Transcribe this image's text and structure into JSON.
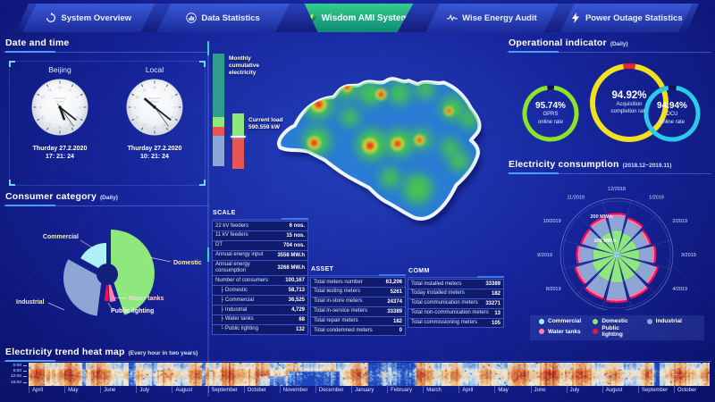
{
  "nav": {
    "tabs": [
      {
        "label": "System Overview",
        "icon": "refresh-icon",
        "active": false
      },
      {
        "label": "Data Statistics",
        "icon": "chart-icon",
        "active": false
      },
      {
        "label": "Wisdom AMI System",
        "icon": "leaf-icon",
        "active": true
      },
      {
        "label": "Wise Energy Audit",
        "icon": "pulse-icon",
        "active": false
      },
      {
        "label": "Power Outage Statistics",
        "icon": "bolt-icon",
        "active": false
      }
    ]
  },
  "datetime": {
    "title": "Date and time",
    "watermark_lines": [
      "Powered by",
      "Wisdom"
    ],
    "clocks": [
      {
        "label": "Beijing",
        "date": "Thurday 27.2.2020",
        "time": "17: 21: 24",
        "hour": 17,
        "minute": 21,
        "second": 24
      },
      {
        "label": "Local",
        "date": "Thurday 27.2.2020",
        "time": "10: 21: 24",
        "hour": 10,
        "minute": 21,
        "second": 24
      }
    ]
  },
  "consumer_category": {
    "title": "Consumer category",
    "subtitle": "(Daily)"
  },
  "mid": {
    "monthly_label": "Monthly cumulative electricity",
    "current_load_label": "Current load",
    "current_load_value": "590.559 kW"
  },
  "tables": {
    "scale": {
      "title": "SCALE",
      "rows": [
        {
          "label": "22 kV feeders",
          "value": "6 nos."
        },
        {
          "label": "11 kV feeders",
          "value": "15 nos."
        },
        {
          "label": "DT",
          "value": "704 nos."
        },
        {
          "label": "Annual energy input",
          "value": "3558 MW.h"
        },
        {
          "label": "Annual energy consumption",
          "value": "3268 MW.h"
        },
        {
          "label": "Number of consumers",
          "value": "100,167"
        },
        {
          "label": "├ Domestic",
          "value": "58,713",
          "sub": true
        },
        {
          "label": "├ Commercial",
          "value": "36,525",
          "sub": true
        },
        {
          "label": "├ Industrial",
          "value": "4,729",
          "sub": true
        },
        {
          "label": "├ Water tanks",
          "value": "68",
          "sub": true
        },
        {
          "label": "└ Public lighting",
          "value": "132",
          "sub": true
        }
      ]
    },
    "asset": {
      "title": "ASSET",
      "rows": [
        {
          "label": "Total meters number",
          "value": "63,206"
        },
        {
          "label": "Total testing meters",
          "value": "5261"
        },
        {
          "label": "Total in-store meters",
          "value": "24374"
        },
        {
          "label": "Total in-service meters",
          "value": "33389"
        },
        {
          "label": "Total repair meters",
          "value": "182"
        },
        {
          "label": "Total condemned meters",
          "value": "0"
        }
      ]
    },
    "comm": {
      "title": "COMM",
      "rows": [
        {
          "label": "Total installed meters",
          "value": "33389"
        },
        {
          "label": "Today installed meters",
          "value": "182"
        },
        {
          "label": "Total communication meters",
          "value": "33271"
        },
        {
          "label": "Total non-communication meters",
          "value": "13"
        },
        {
          "label": "Total commissioning meters",
          "value": "105"
        }
      ]
    }
  },
  "operational": {
    "title": "Operational indicator",
    "subtitle": "(Daily)",
    "rings": [
      {
        "value": "95.74%",
        "pct": 95.74,
        "lines": [
          "GPRS",
          "online rate"
        ],
        "color": "#8ce32a"
      },
      {
        "value": "94.92%",
        "pct": 94.92,
        "lines": [
          "Acquisition",
          "completion rate"
        ],
        "color": "#f2e11f",
        "notch_color": "#e8262c"
      },
      {
        "value": "94.94%",
        "pct": 94.94,
        "lines": [
          "DCU",
          "online rate"
        ],
        "color": "#2bc9ea"
      }
    ]
  },
  "consumption": {
    "title": "Electricity consumption",
    "subtitle": "(2018.12~2019.11)",
    "axis_labels": [
      "100 MW.h",
      "200 MW.h"
    ],
    "legend": [
      {
        "label": "Commercial",
        "color": "#aef0f8"
      },
      {
        "label": "Domestic",
        "color": "#8ee87d"
      },
      {
        "label": "Industrial",
        "color": "#8ea6d4"
      },
      {
        "label": "Water tanks",
        "color": "#ff7fb2"
      },
      {
        "label": "Public lighting",
        "color": "#f20f52"
      }
    ]
  },
  "heatmap": {
    "title": "Electricity trend heat map",
    "subtitle": "(Every hour in two years)",
    "hours": [
      "0:00",
      "6:00",
      "12:00",
      "18:00"
    ],
    "months": [
      "April",
      "May",
      "June",
      "July",
      "August",
      "September",
      "October",
      "November",
      "December",
      "January",
      "February",
      "March",
      "April",
      "May",
      "June",
      "July",
      "August",
      "September",
      "October"
    ]
  },
  "chart_data": [
    {
      "type": "pie",
      "title": "Consumer category (Daily)",
      "categories": [
        "Domestic",
        "Water tanks",
        "Public lighting",
        "Industrial",
        "Commercial"
      ],
      "values": [
        45,
        4,
        3,
        31,
        17
      ],
      "unit": "% (visual estimate)",
      "colors": [
        "#8ee87d",
        "#ff7fb2",
        "#f2114e",
        "#8ea6d4",
        "#aef0f8"
      ]
    },
    {
      "type": "bar",
      "subtype": "vertical-stacked",
      "title": "Monthly cumulative electricity",
      "segments": [
        {
          "name": "top",
          "pct": 56,
          "color": "#2f9e8f"
        },
        {
          "name": "upper-mid",
          "pct": 9,
          "color": "#8ee87d"
        },
        {
          "name": "lower-mid",
          "pct": 8,
          "color": "#e85555"
        },
        {
          "name": "bottom",
          "pct": 27,
          "color": "#8ca6d8"
        }
      ]
    },
    {
      "type": "bar",
      "subtype": "vertical-stacked",
      "title": "Current load",
      "value_label": "590.559 kW",
      "segments": [
        {
          "name": "above-load",
          "pct": 44,
          "color": "#8ee87d"
        },
        {
          "name": "below-load",
          "pct": 56,
          "color": "#e85555"
        }
      ]
    },
    {
      "type": "donut",
      "title": "Operational indicator (Daily)",
      "series": [
        {
          "label": "GPRS online rate",
          "value": 95.74
        },
        {
          "label": "Acquisition completion rate",
          "value": 94.92
        },
        {
          "label": "DCU online rate",
          "value": 94.94
        }
      ]
    },
    {
      "type": "bar",
      "subtype": "polar-stacked",
      "title": "Electricity consumption (2018.12~2019.11)",
      "ylabel": "MW.h",
      "radial_ticks": [
        100,
        200
      ],
      "categories": [
        "12/2018",
        "1/2019",
        "2/2019",
        "3/2019",
        "4/2019",
        "5/2019",
        "6/2019",
        "7/2019",
        "8/2019",
        "9/2019",
        "10/2019",
        "11/2019"
      ],
      "series": [
        {
          "name": "Commercial",
          "values": [
            12,
            12,
            12,
            12,
            12,
            12,
            12,
            12,
            12,
            12,
            12,
            12
          ]
        },
        {
          "name": "Domestic",
          "values": [
            78,
            72,
            66,
            72,
            82,
            88,
            92,
            90,
            84,
            76,
            70,
            74
          ]
        },
        {
          "name": "Industrial",
          "values": [
            52,
            48,
            44,
            50,
            56,
            60,
            62,
            60,
            56,
            50,
            46,
            50
          ]
        },
        {
          "name": "Water tanks",
          "values": [
            7,
            7,
            7,
            7,
            7,
            7,
            7,
            7,
            7,
            7,
            7,
            7
          ]
        },
        {
          "name": "Public lighting",
          "values": [
            7,
            7,
            7,
            7,
            7,
            7,
            7,
            7,
            7,
            7,
            7,
            7
          ]
        }
      ]
    },
    {
      "type": "heatmap",
      "title": "Electricity trend heat map (Every hour in two years)",
      "x_axis": "19 months (April year 1 to October year 2)",
      "y_axis": [
        "0:00",
        "6:00",
        "12:00",
        "18:00"
      ],
      "encoding": "warm colors = high hourly load, blue = low",
      "notes": "mostly warm with midday intensity; cool blue bands around Nov-Dec year 1 (lower half), Jan-Feb year 2 (full height), thin cool columns in June year 1 and September year 2"
    }
  ]
}
